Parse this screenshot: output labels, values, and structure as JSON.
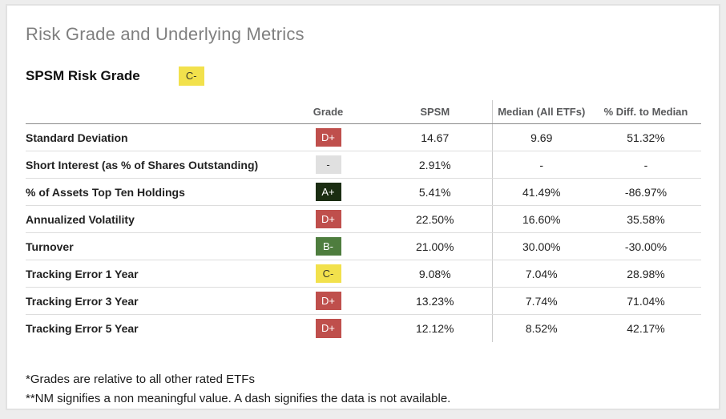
{
  "header": {
    "title": "Risk Grade and Underlying Metrics",
    "subtitle": "SPSM Risk Grade",
    "overall_grade": "C-",
    "overall_grade_level": "yellow"
  },
  "table": {
    "columns": {
      "metric": "",
      "grade": "Grade",
      "spsm": "SPSM",
      "median": "Median (All ETFs)",
      "diff": "% Diff. to Median"
    },
    "rows": [
      {
        "metric": "Standard Deviation",
        "grade": "D+",
        "grade_level": "red",
        "spsm": "14.67",
        "median": "9.69",
        "diff": "51.32%"
      },
      {
        "metric": "Short Interest (as % of Shares Outstanding)",
        "grade": "-",
        "grade_level": "gray",
        "spsm": "2.91%",
        "median": "-",
        "diff": "-"
      },
      {
        "metric": "% of Assets Top Ten Holdings",
        "grade": "A+",
        "grade_level": "darkgreen",
        "spsm": "5.41%",
        "median": "41.49%",
        "diff": "-86.97%"
      },
      {
        "metric": "Annualized Volatility",
        "grade": "D+",
        "grade_level": "red",
        "spsm": "22.50%",
        "median": "16.60%",
        "diff": "35.58%"
      },
      {
        "metric": "Turnover",
        "grade": "B-",
        "grade_level": "green",
        "spsm": "21.00%",
        "median": "30.00%",
        "diff": "-30.00%"
      },
      {
        "metric": "Tracking Error 1 Year",
        "grade": "C-",
        "grade_level": "yellow",
        "spsm": "9.08%",
        "median": "7.04%",
        "diff": "28.98%"
      },
      {
        "metric": "Tracking Error 3 Year",
        "grade": "D+",
        "grade_level": "red",
        "spsm": "13.23%",
        "median": "7.74%",
        "diff": "71.04%"
      },
      {
        "metric": "Tracking Error 5 Year",
        "grade": "D+",
        "grade_level": "red",
        "spsm": "12.12%",
        "median": "8.52%",
        "diff": "42.17%"
      }
    ]
  },
  "footnotes": [
    "*Grades are relative to all other rated ETFs",
    "**NM signifies a non meaningful value. A dash signifies the data is not available."
  ],
  "colors": {
    "grade_red": "#bf4f4c",
    "grade_dark_green": "#1b2d12",
    "grade_green": "#4e7d3e",
    "grade_yellow": "#f2e14c",
    "grade_gray": "#e0e0e0",
    "title_gray": "#7f7f7f"
  }
}
